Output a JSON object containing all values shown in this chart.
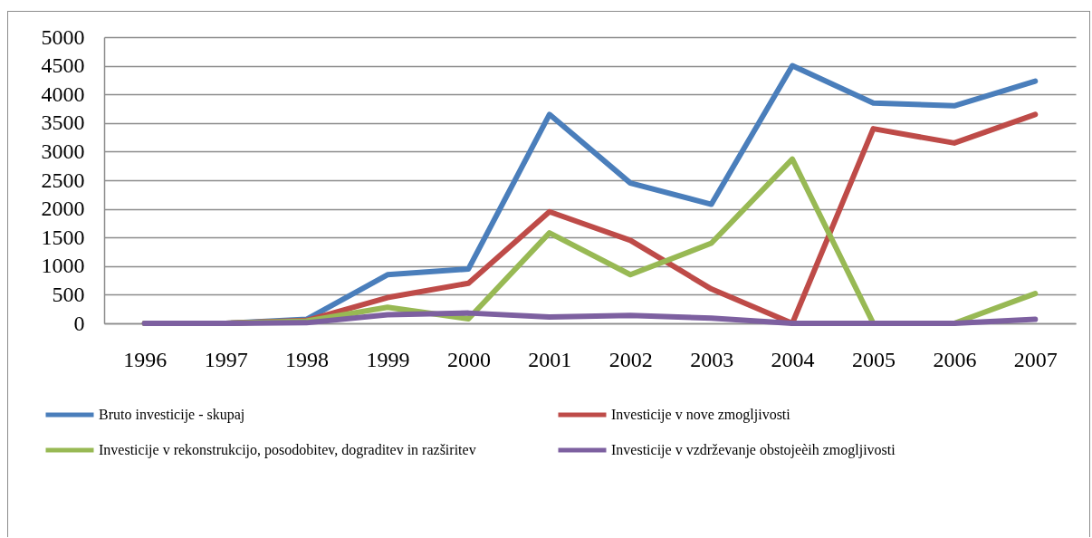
{
  "chart_data": {
    "type": "line",
    "categories": [
      "1996",
      "1997",
      "1998",
      "1999",
      "2000",
      "2001",
      "2002",
      "2003",
      "2004",
      "2005",
      "2006",
      "2007"
    ],
    "series": [
      {
        "name": "Bruto investicije - skupaj",
        "color": "#4a7ebb",
        "values": [
          0,
          0,
          70,
          850,
          950,
          3650,
          2450,
          2080,
          4500,
          3850,
          3800,
          4230
        ]
      },
      {
        "name": "Investicije v nove zmogljivosti",
        "color": "#be4b48",
        "values": [
          0,
          0,
          50,
          450,
          700,
          1950,
          1450,
          600,
          0,
          3400,
          3150,
          3650
        ]
      },
      {
        "name": "Investicije v rekonstrukcijo, posodobitev, dograditev in razširitev",
        "color": "#98b954",
        "values": [
          0,
          0,
          40,
          280,
          80,
          1580,
          850,
          1400,
          2870,
          0,
          0,
          520
        ]
      },
      {
        "name": "Investicije v vzdrževanje obstojeèih zmogljivosti",
        "color": "#7d60a0",
        "values": [
          0,
          0,
          10,
          150,
          180,
          110,
          140,
          90,
          0,
          0,
          0,
          70
        ]
      }
    ],
    "ylim": [
      0,
      5000
    ],
    "yticks": [
      0,
      500,
      1000,
      1500,
      2000,
      2500,
      3000,
      3500,
      4000,
      4500,
      5000
    ],
    "grid": "y",
    "legend": "bottom"
  }
}
